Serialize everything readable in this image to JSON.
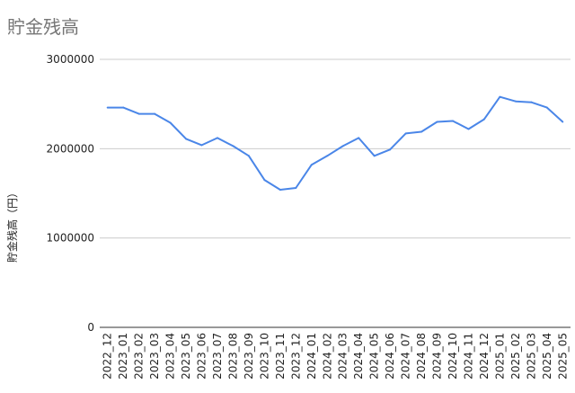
{
  "chart_data": {
    "type": "line",
    "title": "貯金残高",
    "xlabel": "",
    "ylabel": "貯金残高（円）",
    "ylim": [
      0,
      3000000
    ],
    "yticks": [
      "0",
      "1000000",
      "2000000",
      "3000000"
    ],
    "grid": true,
    "legend": "none",
    "line_color": "#4a86e8",
    "categories": [
      "2022_12",
      "2023_01",
      "2023_02",
      "2023_03",
      "2023_04",
      "2023_05",
      "2023_06",
      "2023_07",
      "2023_08",
      "2023_09",
      "2023_10",
      "2023_11",
      "2023_12",
      "2024_01",
      "2024_02",
      "2024_03",
      "2024_04",
      "2024_05",
      "2024_06",
      "2024_07",
      "2024_08",
      "2024_09",
      "2024_10",
      "2024_11",
      "2024_12",
      "2025_01",
      "2025_02",
      "2025_03",
      "2025_04",
      "2025_05"
    ],
    "series": [
      {
        "values": [
          2460000,
          2460000,
          2390000,
          2390000,
          2290000,
          2110000,
          2040000,
          2120000,
          2030000,
          1920000,
          1650000,
          1540000,
          1560000,
          1820000,
          1920000,
          2030000,
          2120000,
          1920000,
          1990000,
          2170000,
          2190000,
          2300000,
          2310000,
          2220000,
          2330000,
          2580000,
          2530000,
          2520000,
          2460000,
          2300000
        ]
      }
    ]
  }
}
